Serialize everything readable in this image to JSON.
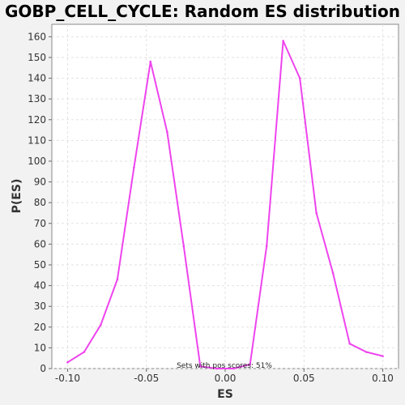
{
  "colors": {
    "background": "#f2f2f2",
    "plot_background": "#ffffff",
    "series": "#ee44ee",
    "grid": "#e2e2e2"
  },
  "chart_data": {
    "type": "line",
    "title": "GOBP_CELL_CYCLE: Random ES distribution",
    "xlabel": "ES",
    "ylabel": "P(ES)",
    "xlim": [
      -0.11,
      0.11
    ],
    "ylim": [
      0,
      166
    ],
    "xticks": [
      -0.1,
      -0.05,
      0.0,
      0.05,
      0.1
    ],
    "xtick_labels": [
      "-0.10",
      "-0.05",
      "0.00",
      "0.05",
      "0.10"
    ],
    "yticks": [
      0,
      10,
      20,
      30,
      40,
      50,
      60,
      70,
      80,
      90,
      100,
      110,
      120,
      130,
      140,
      150,
      160
    ],
    "grid": true,
    "annotation": "Sets with pos scores: 51%",
    "series": [
      {
        "x": [
          -0.1,
          -0.0895,
          -0.079,
          -0.0684,
          -0.0579,
          -0.0474,
          -0.0368,
          -0.0263,
          -0.0158,
          -0.0053,
          0.0053,
          0.0158,
          0.0263,
          0.0368,
          0.0474,
          0.0579,
          0.0684,
          0.079,
          0.0895,
          0.1
        ],
        "y": [
          3,
          8,
          21,
          43,
          97,
          148,
          114,
          59,
          1,
          0,
          0,
          2,
          59,
          158,
          140,
          75,
          46,
          12,
          8,
          6
        ]
      }
    ]
  }
}
